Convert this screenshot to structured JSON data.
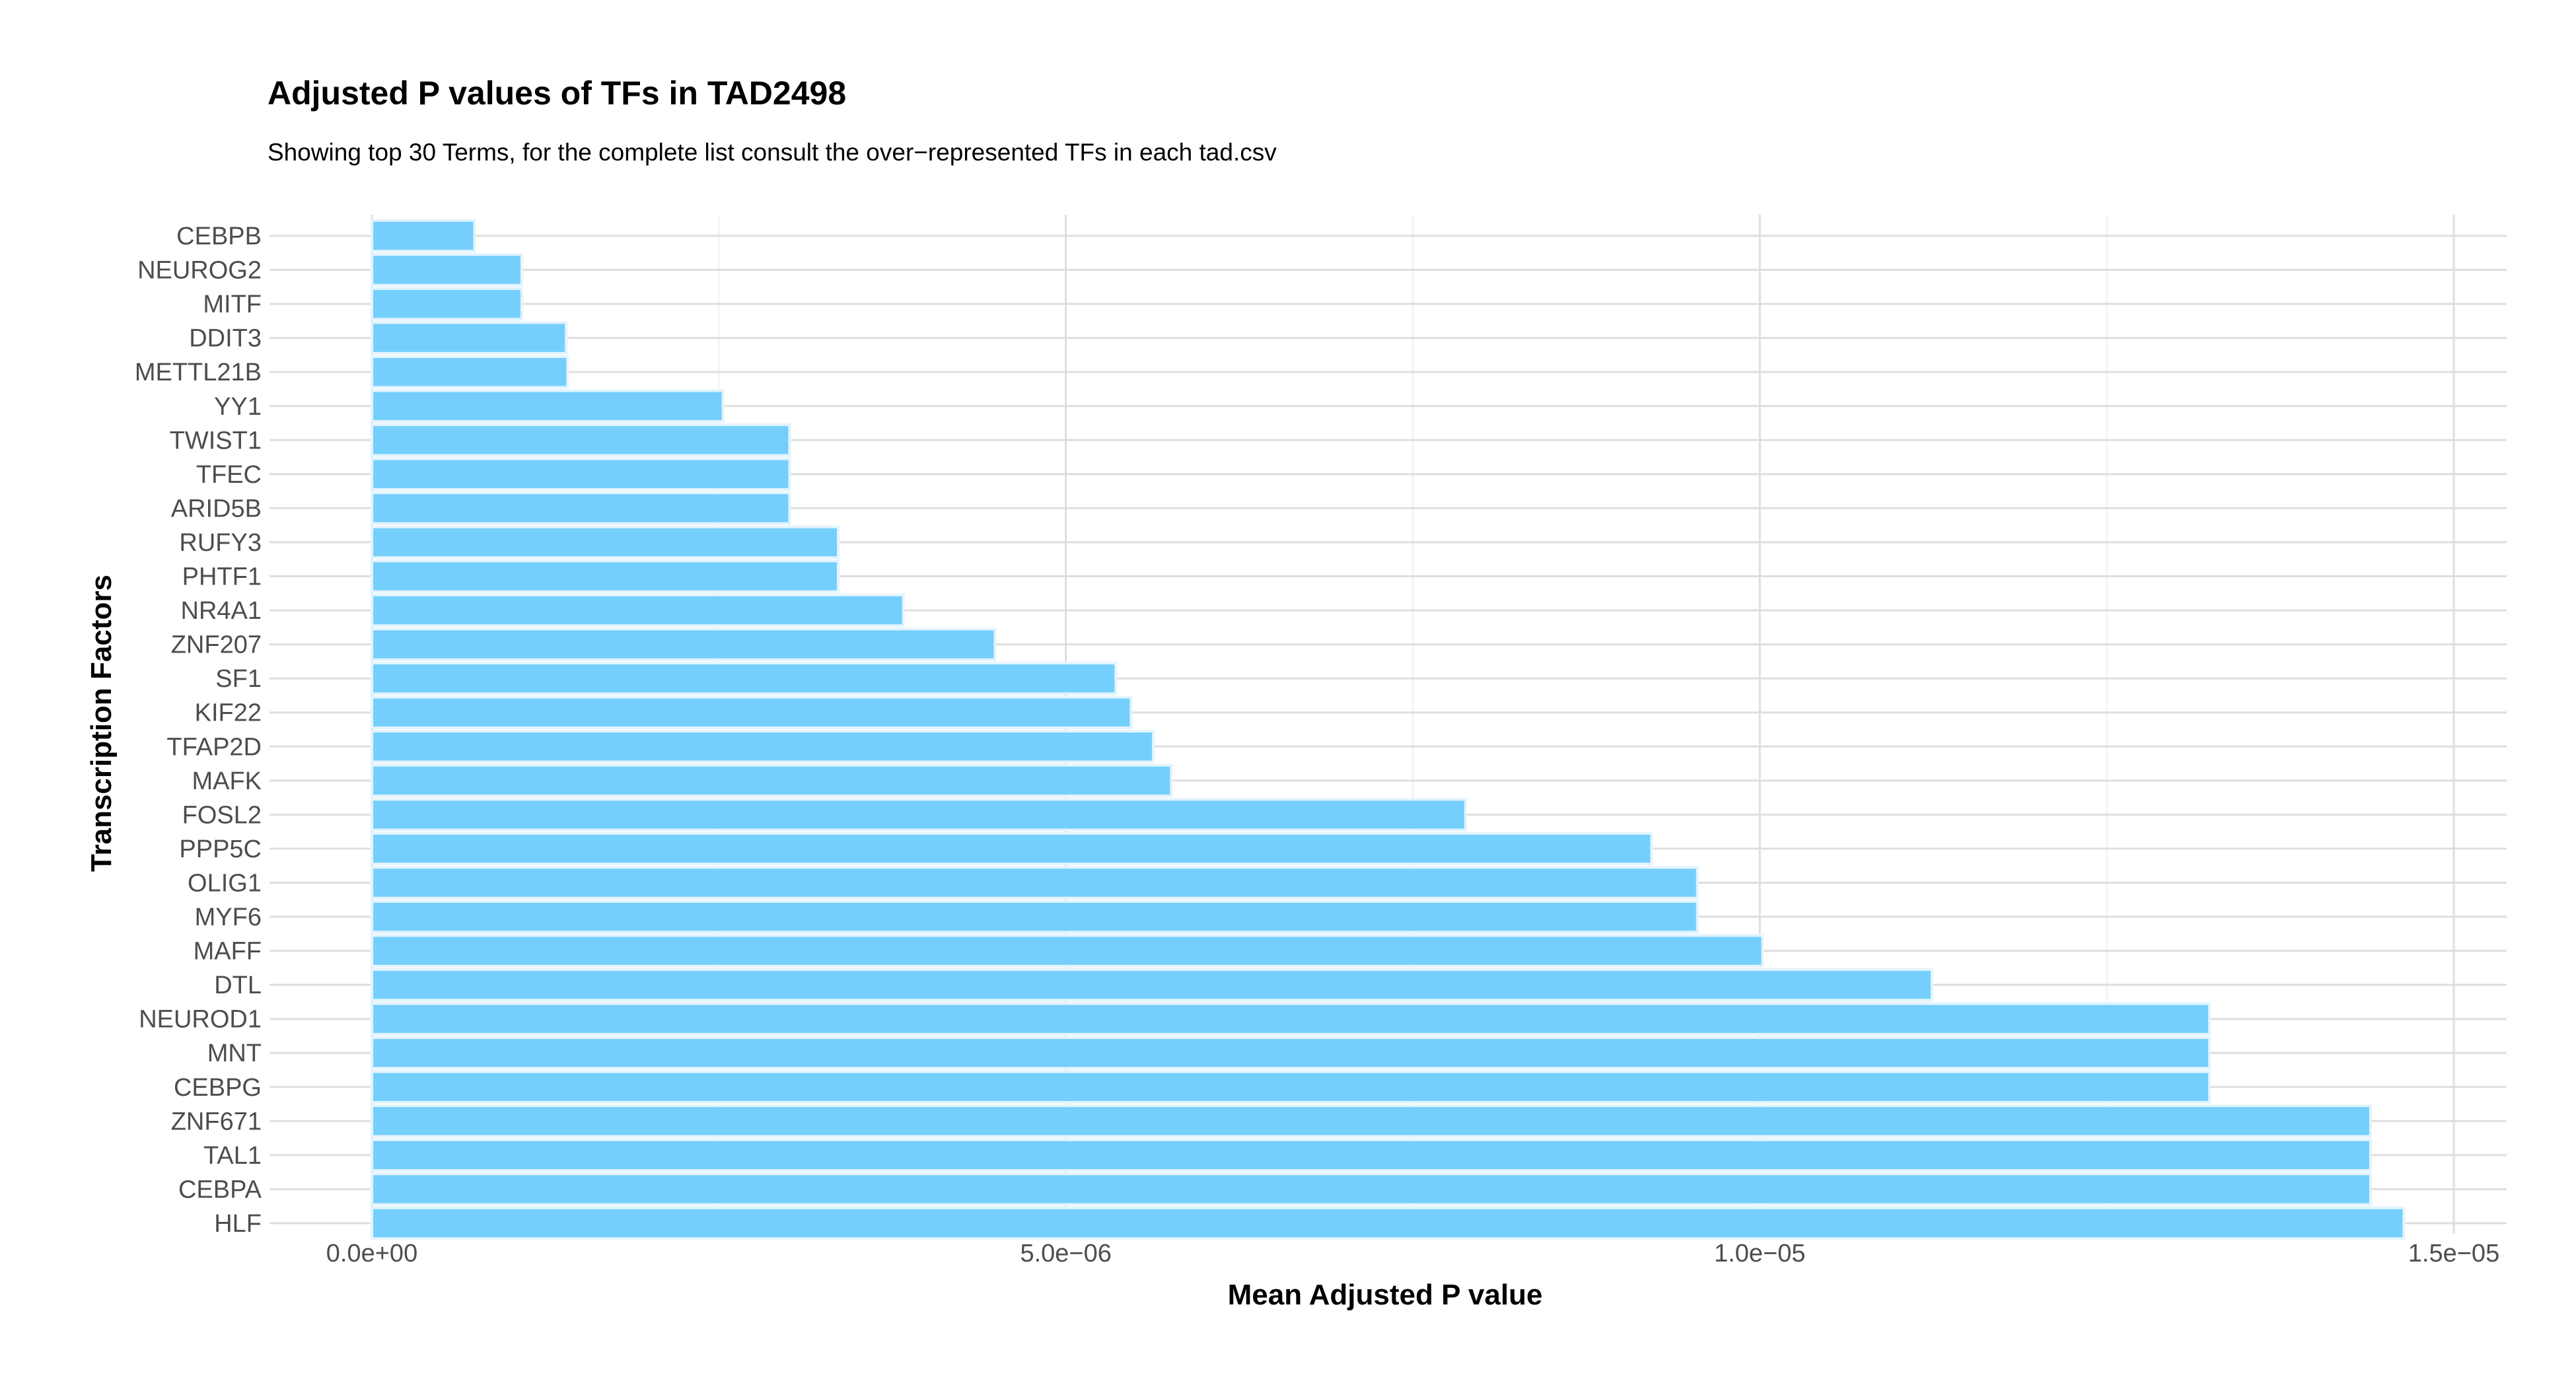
{
  "chart_data": {
    "type": "bar",
    "orientation": "horizontal",
    "title": "Adjusted P values of TFs in TAD2498",
    "subtitle": "Showing top 30 Terms, for the complete list consult the over−represented TFs in each tad.csv",
    "xlabel": "Mean Adjusted P value",
    "ylabel": "Transcription Factors",
    "xlim": [
      0,
      1.5e-05
    ],
    "xticks": [
      0,
      5e-06,
      1e-05,
      1.5e-05
    ],
    "xtick_labels": [
      "0.0e+00",
      "5.0e−06",
      "1.0e−05",
      "1.5e−05"
    ],
    "bar_color": "#75cffc",
    "bar_edge_color": "#e3f4fd",
    "grid": true,
    "legend": "none",
    "categories": [
      "CEBPB",
      "NEUROG2",
      "MITF",
      "DDIT3",
      "METTL21B",
      "YY1",
      "TWIST1",
      "TFEC",
      "ARID5B",
      "RUFY3",
      "PHTF1",
      "NR4A1",
      "ZNF207",
      "SF1",
      "KIF22",
      "TFAP2D",
      "MAFK",
      "FOSL2",
      "PPP5C",
      "OLIG1",
      "MYF6",
      "MAFF",
      "DTL",
      "NEUROD1",
      "MNT",
      "CEBPG",
      "ZNF671",
      "TAL1",
      "CEBPA",
      "HLF"
    ],
    "values": [
      7.4e-07,
      1.08e-06,
      1.08e-06,
      1.4e-06,
      1.41e-06,
      2.53e-06,
      3.01e-06,
      3.01e-06,
      3.01e-06,
      3.36e-06,
      3.36e-06,
      3.83e-06,
      4.49e-06,
      5.36e-06,
      5.47e-06,
      5.63e-06,
      5.76e-06,
      7.88e-06,
      9.22e-06,
      9.55e-06,
      9.55e-06,
      1.002e-05,
      1.124e-05,
      1.324e-05,
      1.324e-05,
      1.324e-05,
      1.44e-05,
      1.44e-05,
      1.44e-05,
      1.464e-05
    ]
  }
}
